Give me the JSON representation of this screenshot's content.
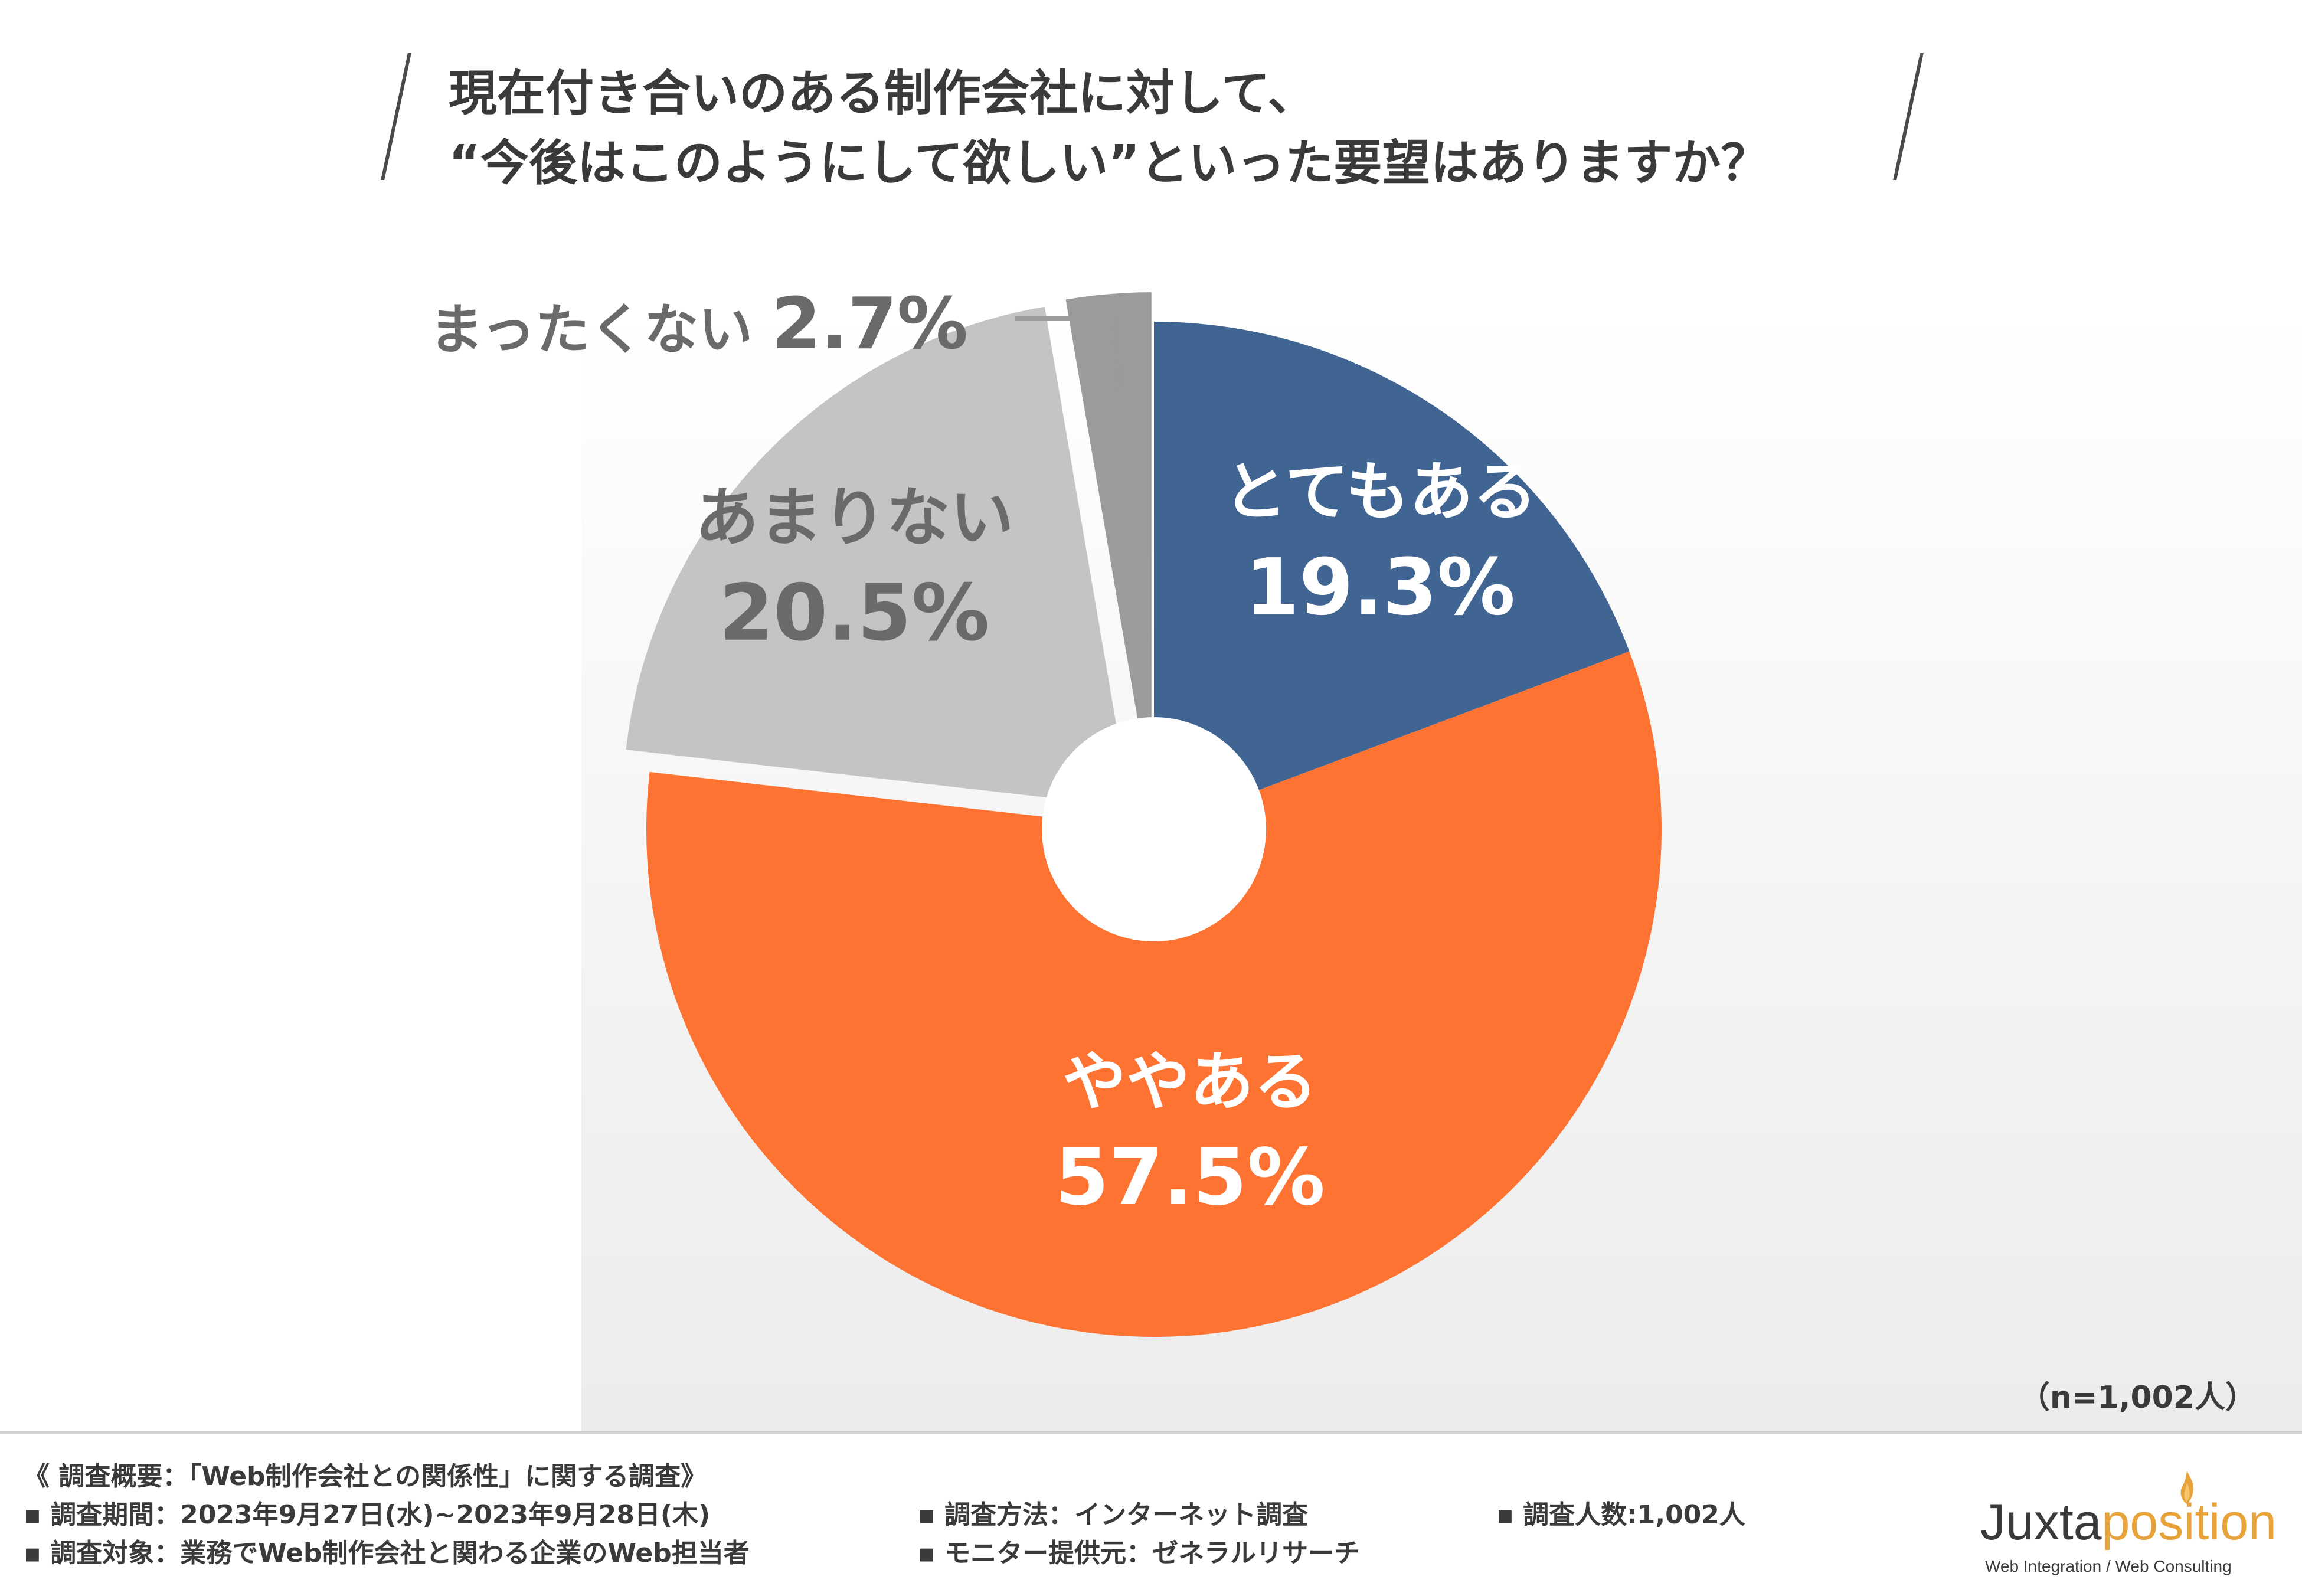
{
  "title": {
    "line1": "現在付き合いのある制作会社に対して、",
    "line2": "“今後はこのようにして欲しい”といった要望はありますか？"
  },
  "chart_data": {
    "type": "pie",
    "donut": true,
    "categories": [
      "とてもある",
      "ややある",
      "あまりない",
      "まったくない"
    ],
    "values": [
      19.3,
      57.5,
      20.5,
      2.7
    ],
    "value_labels": [
      "19.3%",
      "57.5%",
      "20.5%",
      "2.7%"
    ],
    "colors": [
      "#406592",
      "#fe7232",
      "#c4c4c4",
      "#9b9b9b"
    ],
    "label_colors": [
      "#ffffff",
      "#ffffff",
      "#6a6a6a",
      "#6a6a6a"
    ],
    "start": "top",
    "direction": "clockwise"
  },
  "sample_size": "（n=1,002人）",
  "footer": {
    "heading": "《 調査概要：「Web制作会社との関係性」に関する調査》",
    "period": "▪ 調査期間：2023年9月27日(水)~2023年9月28日(木)",
    "target": "▪ 調査対象：業務でWeb制作会社と関わる企業のWeb担当者",
    "method": "▪ 調査方法：インターネット調査",
    "provider": "▪ モニター提供元：ゼネラルリサーチ",
    "count": "▪ 調査人数:1,002人"
  },
  "logo": {
    "name_part1": "Juxta",
    "name_part2": "position",
    "tagline": "Web Integration / Web Consulting",
    "accent_color": "#e8a23a"
  }
}
